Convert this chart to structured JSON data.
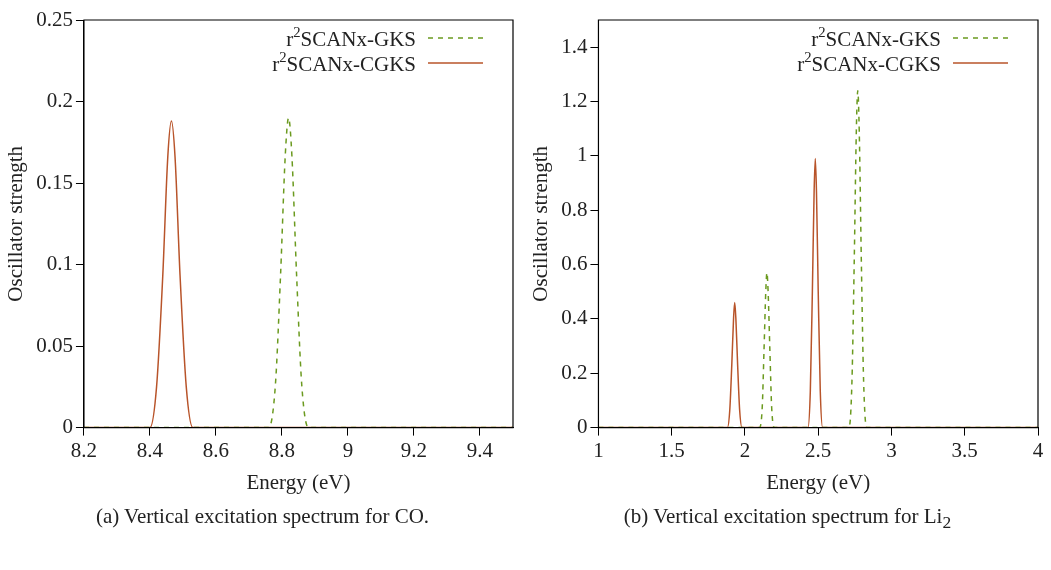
{
  "chart_data": [
    {
      "type": "line",
      "xlabel": "Energy (eV)",
      "ylabel": "Oscillator strength",
      "xlim": [
        8.2,
        9.5
      ],
      "xticks": [
        8.2,
        8.4,
        8.6,
        8.8,
        9,
        9.2,
        9.4
      ],
      "ylim": [
        0,
        0.25
      ],
      "yticks": [
        0,
        0.05,
        0.1,
        0.15,
        0.2,
        0.25
      ],
      "grid": false,
      "legend": "top right",
      "marker": "none",
      "annotations": [
        "(a) Vertical excitation spectrum for CO."
      ],
      "series": [
        {
          "name": "r$^{2}$SCANx-GKS",
          "color": "#6b9a1f",
          "line_style": "dashed",
          "x": [
            8.2,
            8.76,
            8.78,
            8.796,
            8.81,
            8.82,
            8.83,
            8.844,
            8.86,
            8.88,
            9.5
          ],
          "values": [
            0,
            0,
            0.026,
            0.095,
            0.167,
            0.19,
            0.167,
            0.095,
            0.026,
            0,
            0
          ]
        },
        {
          "name": "r$^{2}$SCANx-CGKS",
          "color": "#b8542a",
          "line_style": "solid",
          "x": [
            8.2,
            8.4,
            8.42,
            8.439,
            8.454,
            8.465,
            8.476,
            8.491,
            8.51,
            8.53,
            9.5
          ],
          "values": [
            0,
            0,
            0.025,
            0.094,
            0.166,
            0.188,
            0.166,
            0.094,
            0.025,
            0,
            0
          ]
        }
      ]
    },
    {
      "type": "line",
      "xlabel": "Energy (eV)",
      "ylabel": "Oscillator strength",
      "xlim": [
        1,
        4
      ],
      "xticks": [
        1,
        1.5,
        2,
        2.5,
        3,
        3.5,
        4
      ],
      "ylim": [
        0,
        1.5
      ],
      "yticks": [
        0,
        0.2,
        0.4,
        0.6,
        0.8,
        1,
        1.2,
        1.4
      ],
      "grid": false,
      "legend": "top right",
      "marker": "none",
      "annotations": [
        "(b) Vertical excitation spectrum for Li$_{2}$"
      ],
      "series": [
        {
          "name": "r$^{2}$SCANx-GKS",
          "color": "#6b9a1f",
          "line_style": "dashed",
          "x": [
            1,
            2.1,
            2.118,
            2.13,
            2.142,
            2.15,
            2.158,
            2.17,
            2.182,
            2.2,
            2.71,
            2.73,
            2.746,
            2.76,
            2.77,
            2.78,
            2.794,
            2.81,
            2.83,
            4
          ],
          "values": [
            0,
            0,
            0.077,
            0.285,
            0.5,
            0.57,
            0.5,
            0.285,
            0.077,
            0,
            0,
            0.167,
            0.62,
            1.09,
            1.24,
            1.09,
            0.62,
            0.167,
            0,
            0
          ]
        },
        {
          "name": "r$^{2}$SCANx-CGKS",
          "color": "#b8542a",
          "line_style": "solid",
          "x": [
            1,
            1.88,
            1.896,
            1.91,
            1.922,
            1.93,
            1.938,
            1.95,
            1.964,
            1.98,
            2.43,
            2.446,
            2.46,
            2.472,
            2.48,
            2.488,
            2.5,
            2.514,
            2.53,
            4
          ],
          "values": [
            0,
            0,
            0.062,
            0.23,
            0.4,
            0.46,
            0.4,
            0.23,
            0.062,
            0,
            0,
            0.134,
            0.5,
            0.87,
            0.99,
            0.87,
            0.5,
            0.134,
            0,
            0
          ]
        }
      ]
    }
  ]
}
